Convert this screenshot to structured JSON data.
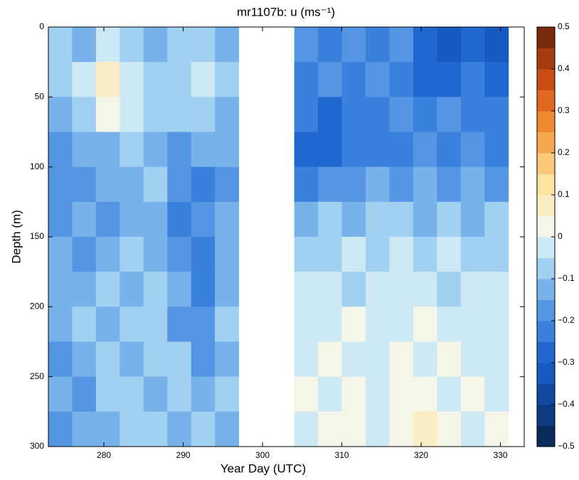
{
  "chart_data": {
    "type": "heatmap",
    "title": "mr1107b: u (ms⁻¹)",
    "x_label": "Year Day (UTC)",
    "y_label": "Depth (m)",
    "xlim": [
      273,
      333
    ],
    "xticks": [
      280,
      290,
      300,
      310,
      320,
      330
    ],
    "ylim": [
      0,
      300
    ],
    "yticks": [
      0,
      50,
      100,
      150,
      200,
      250,
      300
    ],
    "y_inverted": true,
    "x": [
      274.5,
      277.5,
      280.5,
      283.5,
      286.5,
      289.5,
      292.5,
      295.5,
      305.5,
      308.5,
      311.5,
      314.5,
      317.5,
      320.5,
      323.5,
      326.5,
      329.5
    ],
    "y": [
      12.5,
      37.5,
      62.5,
      87.5,
      112.5,
      137.5,
      162.5,
      187.5,
      212.5,
      237.5,
      262.5,
      287.5
    ],
    "z": [
      [
        -0.1,
        -0.15,
        -0.05,
        -0.1,
        -0.15,
        -0.1,
        -0.1,
        -0.15,
        -0.2,
        -0.25,
        -0.2,
        -0.25,
        -0.2,
        -0.3,
        -0.35,
        -0.3,
        -0.35
      ],
      [
        -0.1,
        -0.05,
        0.05,
        -0.05,
        -0.1,
        -0.1,
        -0.05,
        -0.1,
        -0.25,
        -0.2,
        -0.25,
        -0.2,
        -0.25,
        -0.3,
        -0.3,
        -0.25,
        -0.3
      ],
      [
        -0.15,
        -0.1,
        0,
        -0.05,
        -0.1,
        -0.1,
        -0.1,
        -0.15,
        -0.25,
        -0.3,
        -0.25,
        -0.25,
        -0.2,
        -0.25,
        -0.2,
        -0.25,
        -0.25
      ],
      [
        -0.2,
        -0.15,
        -0.15,
        -0.1,
        -0.15,
        -0.2,
        -0.15,
        -0.15,
        -0.3,
        -0.3,
        -0.25,
        -0.25,
        -0.25,
        -0.2,
        -0.25,
        -0.2,
        -0.25
      ],
      [
        -0.2,
        -0.2,
        -0.15,
        -0.15,
        -0.1,
        -0.2,
        -0.25,
        -0.2,
        -0.25,
        -0.2,
        -0.2,
        -0.15,
        -0.2,
        -0.15,
        -0.2,
        -0.15,
        -0.2
      ],
      [
        -0.2,
        -0.15,
        -0.2,
        -0.15,
        -0.15,
        -0.25,
        -0.2,
        -0.15,
        -0.15,
        -0.1,
        -0.15,
        -0.1,
        -0.1,
        -0.15,
        -0.1,
        -0.15,
        -0.1
      ],
      [
        -0.15,
        -0.2,
        -0.15,
        -0.1,
        -0.15,
        -0.2,
        -0.25,
        -0.15,
        -0.1,
        -0.1,
        -0.05,
        -0.1,
        -0.05,
        -0.1,
        -0.05,
        -0.1,
        -0.1
      ],
      [
        -0.15,
        -0.15,
        -0.1,
        -0.15,
        -0.1,
        -0.15,
        -0.25,
        -0.15,
        -0.05,
        -0.05,
        -0.1,
        -0.05,
        -0.05,
        -0.05,
        -0.1,
        -0.05,
        -0.05
      ],
      [
        -0.15,
        -0.1,
        -0.15,
        -0.1,
        -0.1,
        -0.2,
        -0.2,
        -0.1,
        -0.05,
        -0.05,
        0,
        -0.05,
        -0.05,
        0,
        -0.05,
        -0.05,
        -0.05
      ],
      [
        -0.2,
        -0.15,
        -0.1,
        -0.15,
        -0.1,
        -0.1,
        -0.2,
        -0.15,
        -0.05,
        0,
        -0.05,
        -0.05,
        0,
        -0.05,
        0,
        -0.05,
        -0.05
      ],
      [
        -0.15,
        -0.2,
        -0.1,
        -0.1,
        -0.15,
        -0.1,
        -0.15,
        -0.1,
        0,
        -0.05,
        0,
        -0.05,
        0,
        0,
        -0.05,
        0,
        -0.05
      ],
      [
        -0.2,
        -0.15,
        -0.15,
        -0.1,
        -0.1,
        -0.15,
        -0.1,
        -0.15,
        -0.05,
        0,
        0,
        -0.05,
        0,
        0.05,
        0,
        -0.05,
        0
      ]
    ],
    "clim": [
      -0.5,
      0.5
    ],
    "colors": [
      "#0b2a5c",
      "#0d3a80",
      "#1148a0",
      "#1659c0",
      "#2068d0",
      "#3a80dd",
      "#5596e4",
      "#78b2ea",
      "#a2d0f0",
      "#cde9f5",
      "#f5f5e8",
      "#fbeec5",
      "#fde3a0",
      "#f9c878",
      "#f5a850",
      "#f08a30",
      "#e06820",
      "#c84d14",
      "#a63a10",
      "#7a2a0a"
    ],
    "cticks": [
      0.5,
      0.4,
      0.3,
      0.2,
      0.1,
      0,
      {
        "value": -0.1,
        "label": "−0.1"
      },
      {
        "value": -0.2,
        "label": "−0.2"
      },
      {
        "value": -0.3,
        "label": "−0.3"
      },
      {
        "value": -0.4,
        "label": "−0.4"
      },
      {
        "value": -0.5,
        "label": "−0.5"
      }
    ]
  }
}
